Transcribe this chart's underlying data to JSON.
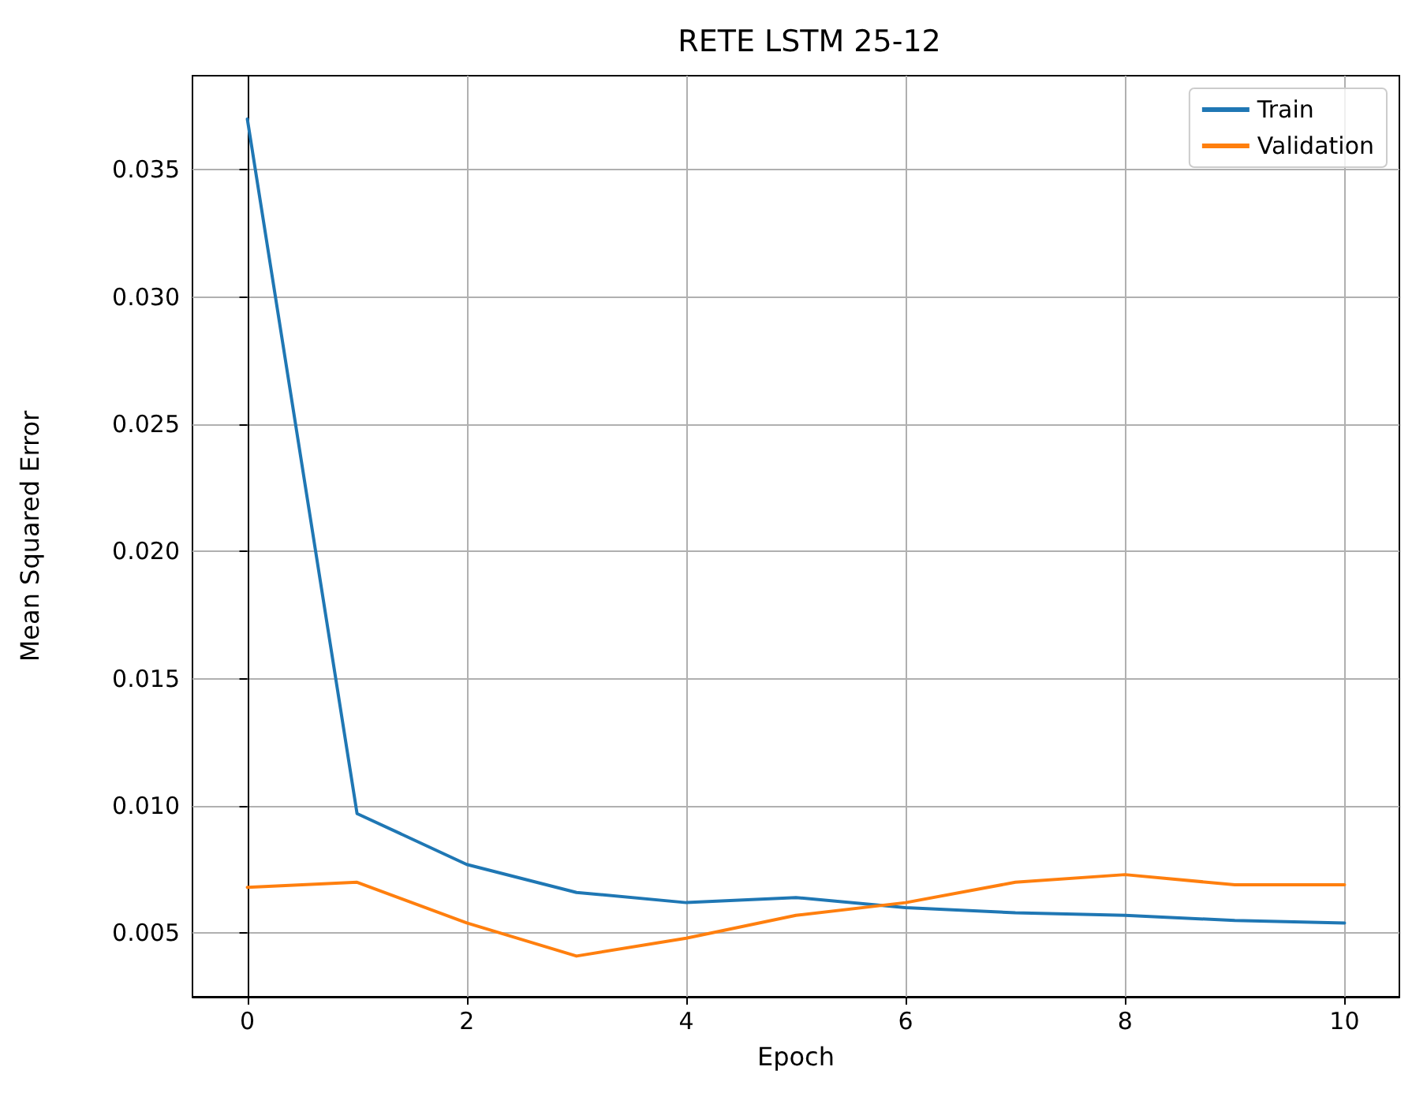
{
  "chart_data": {
    "type": "line",
    "title": "RETE LSTM 25-12",
    "xlabel": "Epoch",
    "ylabel": "Mean Squared Error",
    "x": [
      0,
      1,
      2,
      3,
      4,
      5,
      6,
      7,
      8,
      9,
      10
    ],
    "series": [
      {
        "name": "Train",
        "color": "#1f77b4",
        "values": [
          0.037,
          0.0097,
          0.0077,
          0.0066,
          0.0062,
          0.0064,
          0.006,
          0.0058,
          0.0057,
          0.0055,
          0.0054
        ]
      },
      {
        "name": "Validation",
        "color": "#ff7f0e",
        "values": [
          0.0068,
          0.007,
          0.0054,
          0.0041,
          0.0048,
          0.0057,
          0.0062,
          0.007,
          0.0073,
          0.0069,
          0.0069
        ]
      }
    ],
    "xlim": [
      -0.5,
      10.5
    ],
    "xticks": [
      0,
      2,
      4,
      6,
      8,
      10
    ],
    "ylim": [
      0.0025,
      0.0387
    ],
    "yticks": [
      0.005,
      {
        "value": 0.01,
        "label": "0.010"
      },
      0.015,
      {
        "value": 0.02,
        "label": "0.020"
      },
      0.025,
      {
        "value": 0.03,
        "label": "0.030"
      },
      0.035
    ],
    "grid": true,
    "legend": "top right",
    "marker": "none",
    "line_style": "solid"
  }
}
